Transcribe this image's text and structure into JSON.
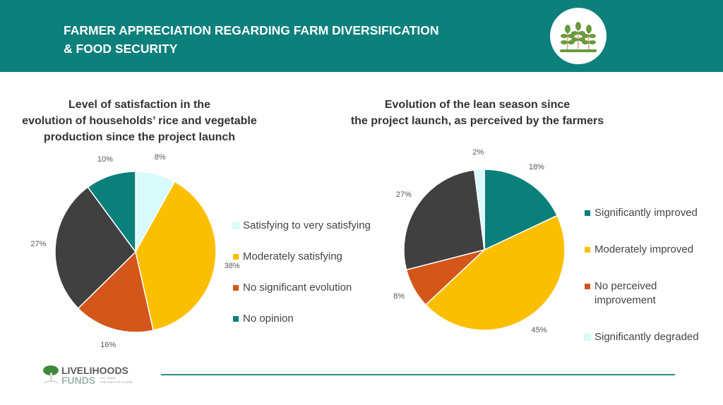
{
  "header": {
    "title_line1": "FARMER APPRECIATION REGARDING FARM DIVERSIFICATION",
    "title_line2": "& FOOD SECURITY",
    "icon": "crops-icon"
  },
  "colors": {
    "teal": "#0a7f7c",
    "yellow": "#fcbf00",
    "orange": "#d3561b",
    "dark": "#404040",
    "cyan": "#d8fafa"
  },
  "chart_data": [
    {
      "type": "pie",
      "title_lines": [
        "Level of satisfaction in the",
        "evolution of households’ rice and vegetable",
        "production since the project launch"
      ],
      "slices": [
        {
          "value": 8,
          "label": "8%",
          "color": "cyan"
        },
        {
          "value": 38,
          "label": "38%",
          "color": "yellow"
        },
        {
          "value": 16,
          "label": "16%",
          "color": "orange"
        },
        {
          "value": 27,
          "label": "27%",
          "color": "dark"
        },
        {
          "value": 10,
          "label": "10%",
          "color": "teal"
        }
      ],
      "legend": [
        {
          "label": "Satisfying to very satisfying",
          "color": "cyan"
        },
        {
          "label": "Moderately satisfying",
          "color": "yellow"
        },
        {
          "label": "No significant evolution",
          "color": "orange"
        },
        {
          "label": "No opinion",
          "color": "teal"
        }
      ]
    },
    {
      "type": "pie",
      "title_lines": [
        "Evolution of the lean season since",
        "the project launch, as perceived by the farmers"
      ],
      "slices": [
        {
          "value": 18,
          "label": "18%",
          "color": "teal"
        },
        {
          "value": 45,
          "label": "45%",
          "color": "yellow"
        },
        {
          "value": 8,
          "label": "8%",
          "color": "orange"
        },
        {
          "value": 27,
          "label": "27%",
          "color": "dark"
        },
        {
          "value": 2,
          "label": "2%",
          "color": "cyan"
        }
      ],
      "legend": [
        {
          "label": "Significantly improved",
          "color": "teal"
        },
        {
          "label": "Moderately improved",
          "color": "yellow"
        },
        {
          "label": "No perceived improvement",
          "color": "orange"
        },
        {
          "label": "Significantly degraded",
          "color": "cyan"
        }
      ]
    }
  ],
  "footer": {
    "logo_name": "LIVELIHOODS",
    "logo_sub": "FUNDS",
    "logo_tag": "ACT TODAY FOR A BETTER FUTURE"
  }
}
